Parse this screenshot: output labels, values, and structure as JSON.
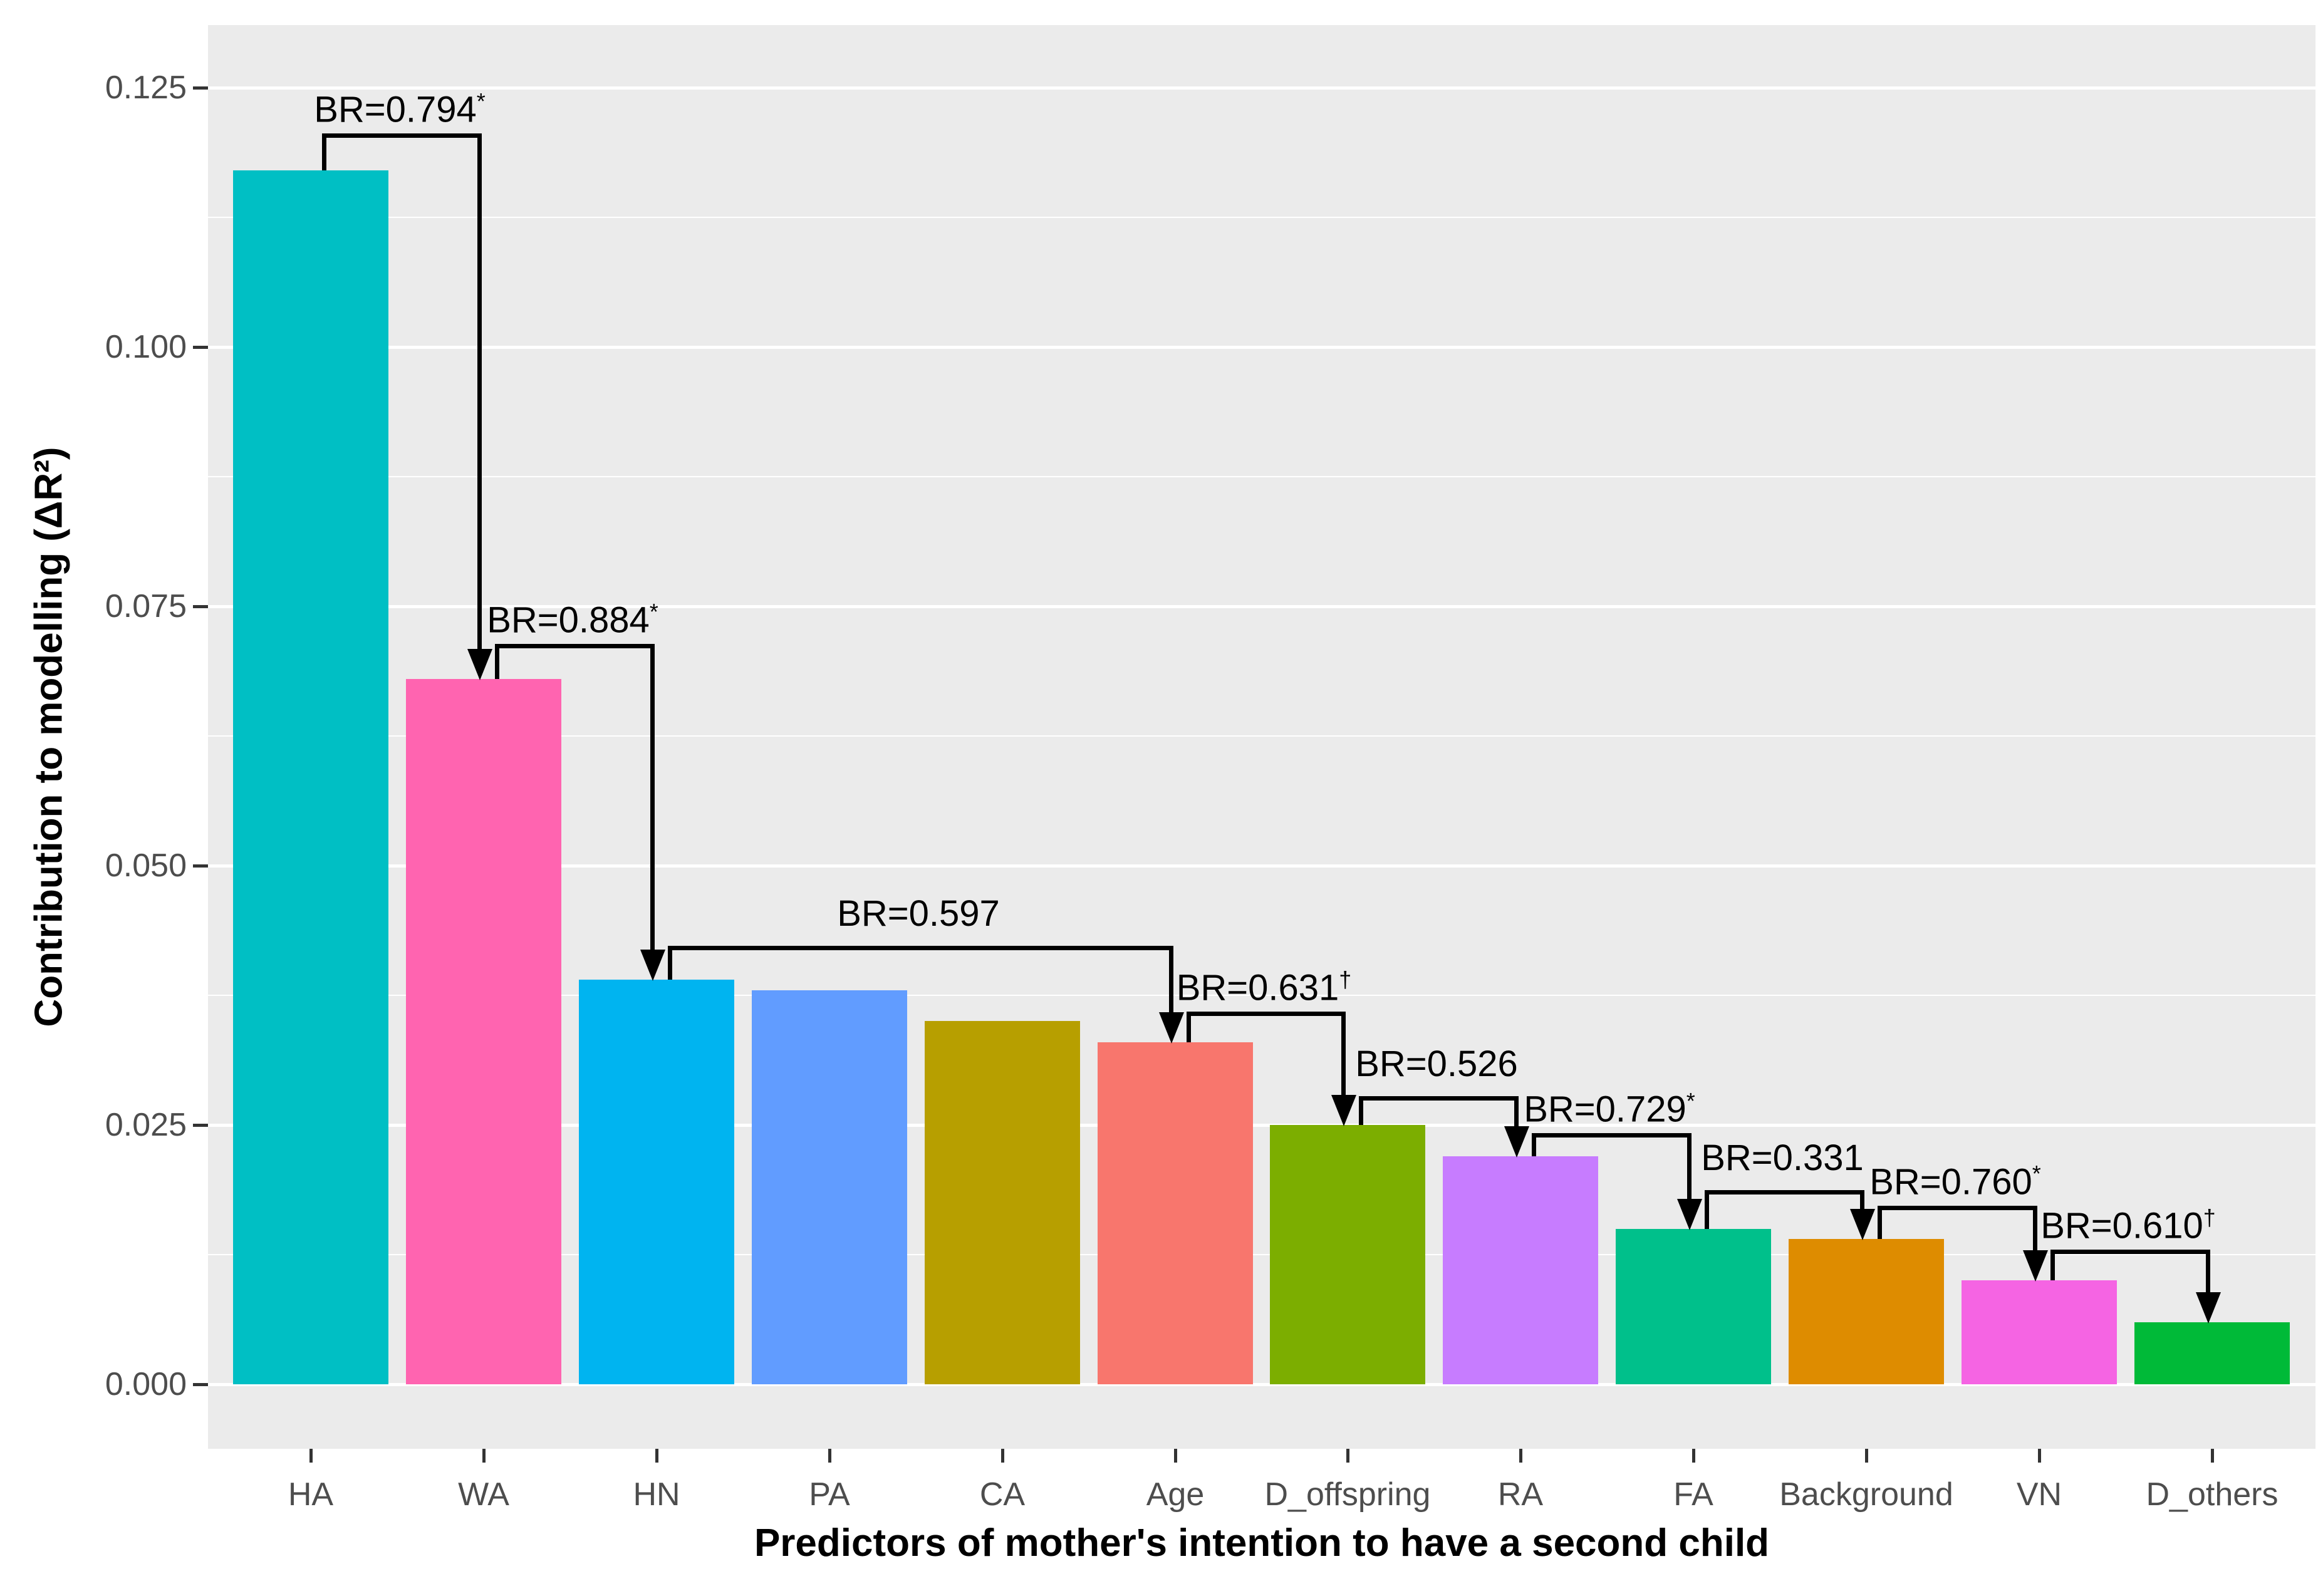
{
  "chart_data": {
    "type": "bar",
    "title": "",
    "xlabel": "Predictors of mother's intention to have a second child",
    "ylabel": "Contribution to modelling (ΔR²)",
    "categories": [
      "HA",
      "WA",
      "HN",
      "PA",
      "CA",
      "Age",
      "D_offspring",
      "RA",
      "FA",
      "Background",
      "VN",
      "D_others"
    ],
    "values": [
      0.117,
      0.068,
      0.039,
      0.038,
      0.035,
      0.033,
      0.025,
      0.022,
      0.015,
      0.014,
      0.01,
      0.006
    ],
    "bar_colors": [
      "#00BFC4",
      "#FF64B0",
      "#00B4F0",
      "#619CFF",
      "#B79F00",
      "#F8766D",
      "#7CAE00",
      "#C77CFF",
      "#00C08B",
      "#DE8C00",
      "#F564E3",
      "#00BA38"
    ],
    "ylim": [
      0,
      0.125
    ],
    "yticks": [
      {
        "value": 0.0,
        "label": "0.000"
      },
      {
        "value": 0.025,
        "label": "0.025"
      },
      {
        "value": 0.05,
        "label": "0.050"
      },
      {
        "value": 0.075,
        "label": "0.075"
      },
      {
        "value": 0.1,
        "label": "0.100"
      },
      {
        "value": 0.125,
        "label": "0.125"
      }
    ],
    "minor_gridlines": [
      0.0125,
      0.0375,
      0.0625,
      0.0875,
      0.1125
    ],
    "grid": "major and minor horizontal gridlines, white on gray panel",
    "legend": "none",
    "panel_bg": "#EBEBEB",
    "grid_color": "#FFFFFF",
    "tick_label_color": "#4D4D4D",
    "annotations": [
      {
        "label": "BR=0.794",
        "sup": "*",
        "from": "HA",
        "to": "WA",
        "bracket_y": 0.1206
      },
      {
        "label": "BR=0.884",
        "sup": "*",
        "from": "WA",
        "to": "HN",
        "bracket_y": 0.0714
      },
      {
        "label": "BR=0.597",
        "sup": "",
        "from": "HN",
        "to": "Age",
        "bracket_y": 0.0423
      },
      {
        "label": "BR=0.631",
        "sup": "†",
        "from": "Age",
        "to": "D_offspring",
        "bracket_y": 0.0359
      },
      {
        "label": "BR=0.526",
        "sup": "",
        "from": "D_offspring",
        "to": "RA",
        "bracket_y": 0.0278
      },
      {
        "label": "BR=0.729",
        "sup": "*",
        "from": "RA",
        "to": "FA",
        "bracket_y": 0.0242
      },
      {
        "label": "BR=0.331",
        "sup": "",
        "from": "FA",
        "to": "Background",
        "bracket_y": 0.0187
      },
      {
        "label": "BR=0.760",
        "sup": "*",
        "from": "Background",
        "to": "VN",
        "bracket_y": 0.0172
      },
      {
        "label": "BR=0.610",
        "sup": "†",
        "from": "VN",
        "to": "D_others",
        "bracket_y": 0.013
      }
    ]
  }
}
